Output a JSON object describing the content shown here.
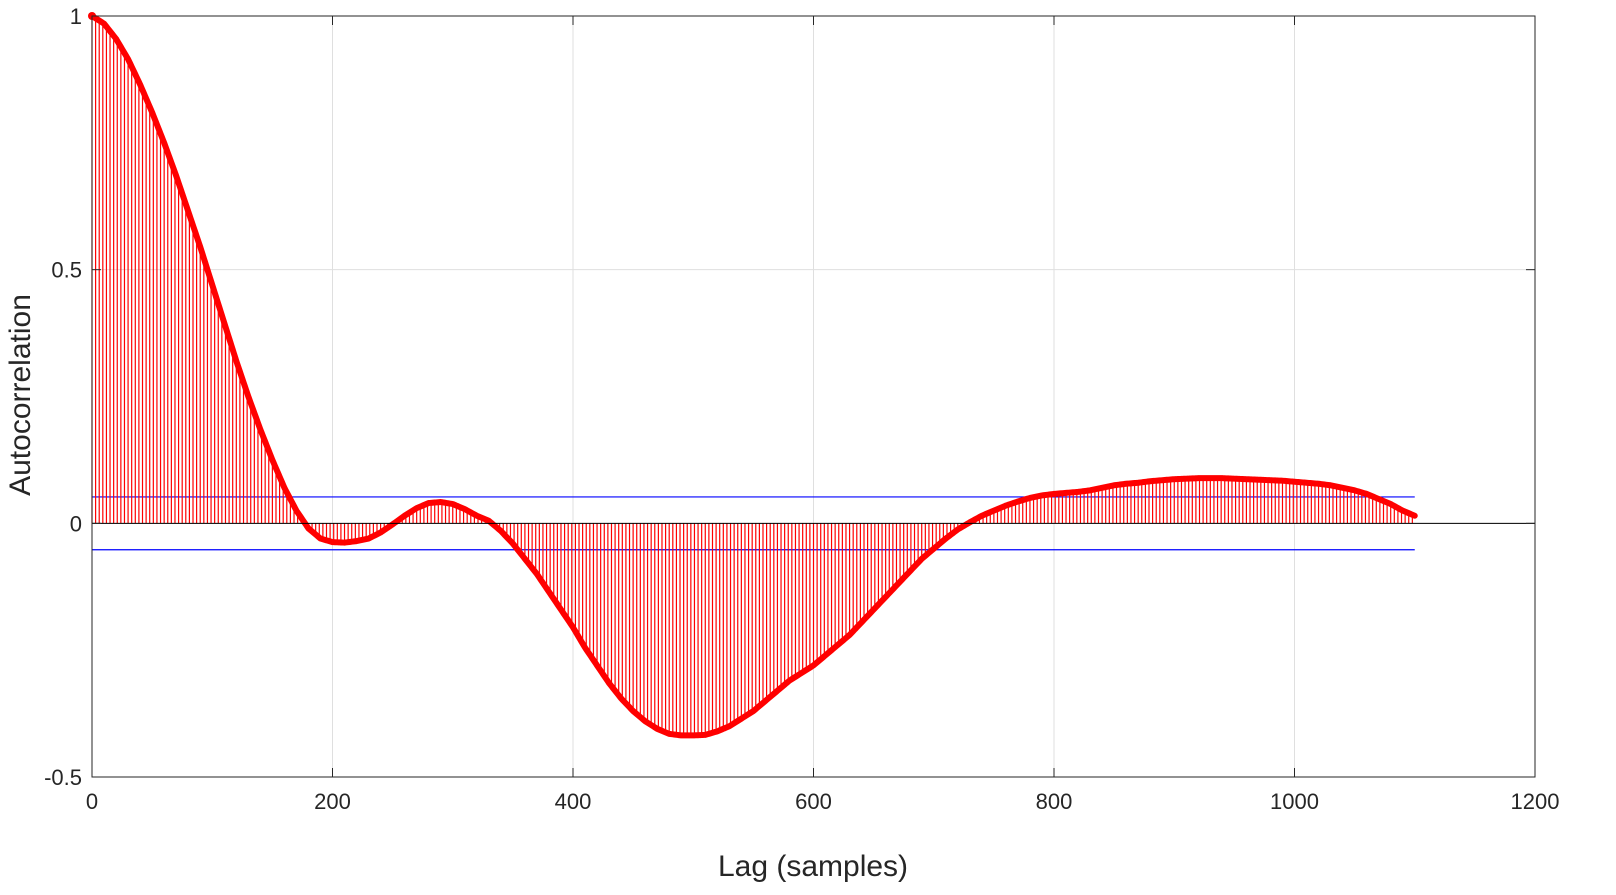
{
  "chart_data": {
    "type": "stem",
    "xlabel": "Lag (samples)",
    "ylabel": "Autocorrelation",
    "xlim": [
      0,
      1200
    ],
    "ylim": [
      -0.5,
      1
    ],
    "xticks": [
      0,
      200,
      400,
      600,
      800,
      1000,
      1200
    ],
    "yticks": [
      -0.5,
      0,
      0.5,
      1
    ],
    "xtick_labels": [
      "0",
      "200",
      "400",
      "600",
      "800",
      "1000",
      "1200"
    ],
    "ytick_labels": [
      "-0.5",
      "0",
      "0.5",
      "1"
    ],
    "grid": true,
    "stem_color": "#ff0000",
    "bound_color": "#0000ff",
    "confidence_bounds": [
      0.052,
      -0.052
    ],
    "bounds_x_range": [
      0,
      1100
    ],
    "series": [
      {
        "x": [
          0,
          10,
          20,
          30,
          40,
          50,
          60,
          70,
          80,
          90,
          100,
          110,
          120,
          130,
          140,
          150,
          160,
          170,
          180,
          190,
          200,
          210,
          220,
          230,
          240,
          250,
          260,
          270,
          280,
          290,
          300,
          310,
          320,
          330,
          340,
          350,
          360,
          370,
          380,
          390,
          400,
          410,
          420,
          430,
          440,
          450,
          460,
          470,
          480,
          490,
          500,
          510,
          520,
          530,
          540,
          550,
          560,
          570,
          580,
          590,
          600,
          610,
          620,
          630,
          640,
          650,
          660,
          670,
          680,
          690,
          700,
          710,
          720,
          730,
          740,
          750,
          760,
          770,
          780,
          790,
          800,
          810,
          820,
          830,
          840,
          850,
          860,
          870,
          880,
          890,
          900,
          910,
          920,
          930,
          940,
          950,
          960,
          970,
          980,
          990,
          1000,
          1010,
          1020,
          1030,
          1040,
          1050,
          1060,
          1070,
          1080,
          1090,
          1100
        ],
        "values": [
          1.0,
          0.985,
          0.955,
          0.915,
          0.865,
          0.81,
          0.75,
          0.685,
          0.615,
          0.545,
          0.47,
          0.395,
          0.32,
          0.25,
          0.185,
          0.125,
          0.07,
          0.025,
          -0.01,
          -0.03,
          -0.037,
          -0.038,
          -0.035,
          -0.03,
          -0.018,
          -0.002,
          0.015,
          0.03,
          0.04,
          0.042,
          0.038,
          0.028,
          0.015,
          0.005,
          -0.015,
          -0.04,
          -0.07,
          -0.1,
          -0.135,
          -0.17,
          -0.205,
          -0.245,
          -0.28,
          -0.315,
          -0.345,
          -0.37,
          -0.39,
          -0.405,
          -0.415,
          -0.418,
          -0.418,
          -0.417,
          -0.41,
          -0.4,
          -0.385,
          -0.37,
          -0.35,
          -0.33,
          -0.31,
          -0.295,
          -0.28,
          -0.26,
          -0.24,
          -0.22,
          -0.195,
          -0.17,
          -0.145,
          -0.12,
          -0.095,
          -0.07,
          -0.05,
          -0.03,
          -0.012,
          0.002,
          0.015,
          0.025,
          0.035,
          0.043,
          0.05,
          0.055,
          0.058,
          0.06,
          0.062,
          0.065,
          0.07,
          0.075,
          0.078,
          0.08,
          0.083,
          0.085,
          0.087,
          0.088,
          0.089,
          0.089,
          0.089,
          0.088,
          0.087,
          0.086,
          0.085,
          0.084,
          0.082,
          0.08,
          0.078,
          0.075,
          0.07,
          0.065,
          0.058,
          0.048,
          0.038,
          0.025,
          0.015
        ]
      }
    ]
  }
}
